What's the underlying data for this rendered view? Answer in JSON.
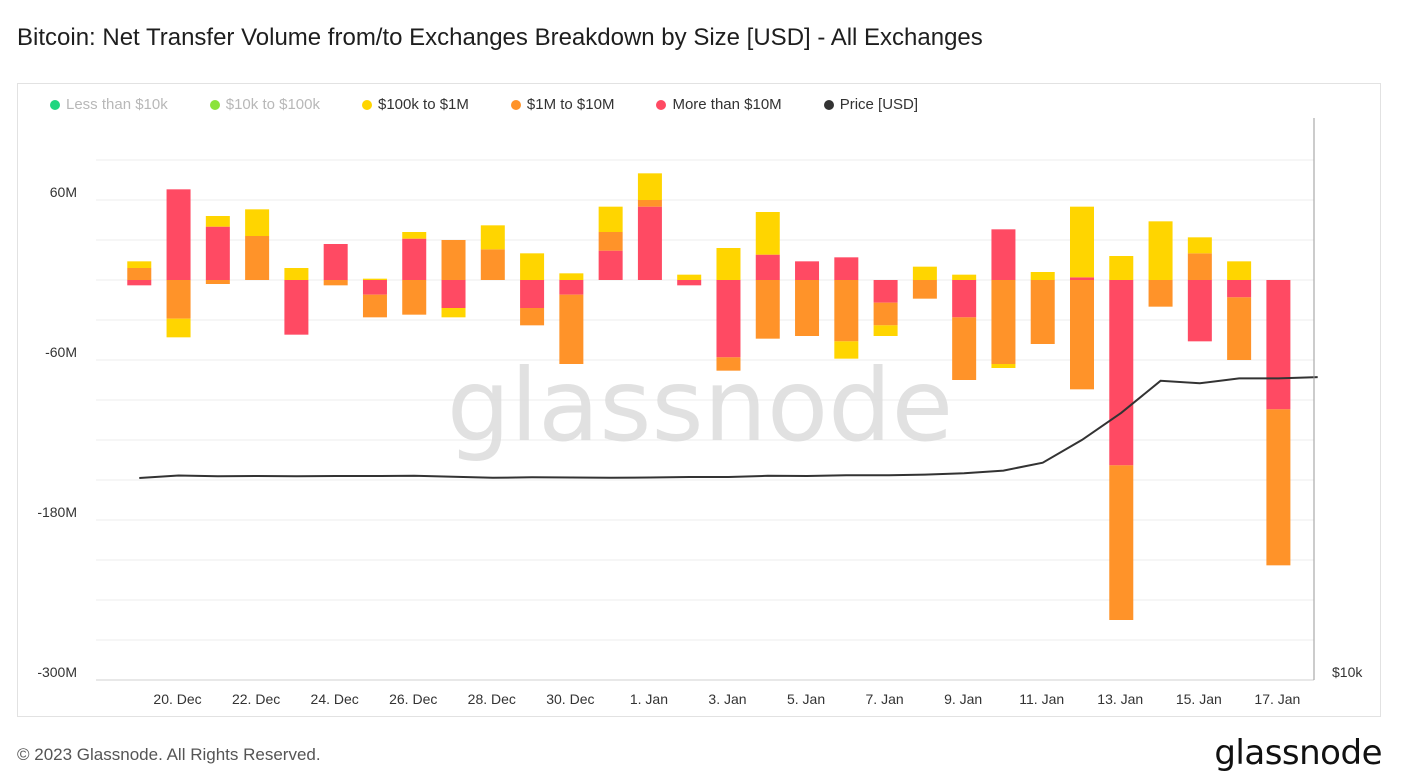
{
  "title": "Bitcoin: Net Transfer Volume from/to Exchanges Breakdown by Size [USD] - All Exchanges",
  "footer": "© 2023 Glassnode. All Rights Reserved.",
  "logo": "glassnode",
  "watermark": "glassnode",
  "colors": {
    "less_10k": "#1fd67f",
    "10k_100k": "#8be33a",
    "100k_1m": "#ffd500",
    "1m_10m": "#ff9329",
    "more_10m": "#ff4a63",
    "price": "#333333"
  },
  "legend": [
    {
      "label": "Less than $10k",
      "color": "#1fd67f",
      "faded": true
    },
    {
      "label": "$10k to $100k",
      "color": "#8be33a",
      "faded": true
    },
    {
      "label": "$100k to $1M",
      "color": "#ffd500",
      "faded": false
    },
    {
      "label": "$1M to $10M",
      "color": "#ff9329",
      "faded": false
    },
    {
      "label": "More than $10M",
      "color": "#ff4a63",
      "faded": false
    },
    {
      "label": "Price [USD]",
      "color": "#333333",
      "faded": false
    }
  ],
  "chart_data": {
    "type": "bar",
    "stacked": true,
    "y_left": {
      "ticks": [
        60,
        -60,
        -180,
        -300
      ],
      "tick_labels": [
        "60M",
        "-60M",
        "-180M",
        "-300M"
      ],
      "range": [
        -300,
        120
      ],
      "unit": "M USD"
    },
    "y_right": {
      "tick_labels": [
        "$10k"
      ]
    },
    "x_tick_labels": [
      "20. Dec",
      "22. Dec",
      "24. Dec",
      "26. Dec",
      "28. Dec",
      "30. Dec",
      "1. Jan",
      "3. Jan",
      "5. Jan",
      "7. Jan",
      "9. Jan",
      "11. Jan",
      "13. Jan",
      "15. Jan",
      "17. Jan"
    ],
    "x_tick_index": [
      1,
      3,
      5,
      7,
      9,
      11,
      13,
      15,
      17,
      19,
      21,
      23,
      25,
      27,
      29
    ],
    "dates": [
      "19. Dec",
      "20. Dec",
      "21. Dec",
      "22. Dec",
      "23. Dec",
      "24. Dec",
      "25. Dec",
      "26. Dec",
      "27. Dec",
      "28. Dec",
      "29. Dec",
      "30. Dec",
      "31. Dec",
      "1. Jan",
      "2. Jan",
      "3. Jan",
      "4. Jan",
      "5. Jan",
      "6. Jan",
      "7. Jan",
      "8. Jan",
      "9. Jan",
      "10. Jan",
      "11. Jan",
      "12. Jan",
      "13. Jan",
      "14. Jan",
      "15. Jan",
      "16. Jan",
      "17. Jan",
      "18. Jan"
    ],
    "series": [
      {
        "name": "$100k to $1M",
        "key": "100k_1m",
        "values": [
          5,
          -14,
          8,
          20,
          9,
          0,
          1,
          5,
          -7,
          18,
          20,
          5,
          19,
          20,
          4,
          24,
          32,
          0,
          -13,
          -8,
          10,
          4,
          -3,
          6,
          53,
          18,
          44,
          12,
          14,
          0,
          0
        ]
      },
      {
        "name": "$1M to $10M",
        "key": "1m_10m",
        "values": [
          9,
          -29,
          -3,
          33,
          0,
          -4,
          -17,
          -26,
          30,
          23,
          -13,
          -52,
          14,
          5,
          0,
          -10,
          -44,
          -42,
          -46,
          -17,
          -14,
          -47,
          -63,
          -48,
          -82,
          -116,
          -20,
          20,
          -47,
          -117,
          0
        ]
      },
      {
        "name": "More than $10M",
        "key": "more_10m",
        "values": [
          -4,
          68,
          40,
          0,
          -41,
          27,
          -11,
          31,
          -21,
          0,
          -21,
          -11,
          22,
          55,
          -4,
          -58,
          19,
          14,
          17,
          -17,
          0,
          -28,
          38,
          0,
          2,
          -139,
          0,
          -46,
          -13,
          -97,
          0
        ]
      },
      {
        "name": "Price [USD]",
        "key": "price",
        "values": [
          16.75,
          16.85,
          16.82,
          16.83,
          16.82,
          16.83,
          16.83,
          16.84,
          16.8,
          16.76,
          16.78,
          16.77,
          16.76,
          16.77,
          16.79,
          16.79,
          16.84,
          16.83,
          16.86,
          16.86,
          16.89,
          16.94,
          17.05,
          17.37,
          18.3,
          19.4,
          20.7,
          20.6,
          20.8,
          20.8,
          20.85
        ]
      }
    ]
  }
}
